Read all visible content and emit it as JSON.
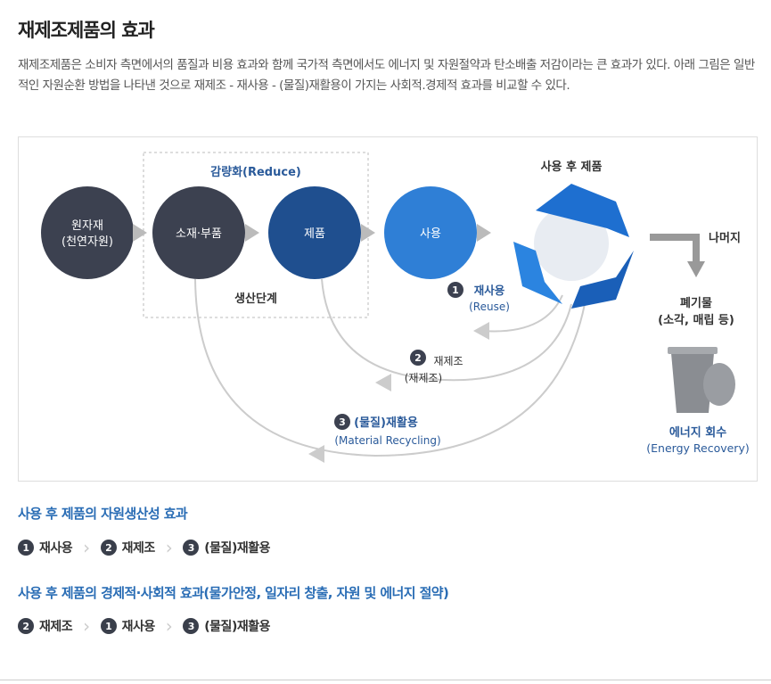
{
  "title": "재제조제품의 효과",
  "description": "재제조제품은 소비자 측면에서의 품질과 비용 효과와 함께 국가적 측면에서도 에너지 및 자원절약과 탄소배출 저감이라는 큰 효과가 있다. 아래 그림은 일반적인 자원순환 방법을 나타낸 것으로 재제조 - 재사용 - (물질)재활용이 가지는 사회적.경제적 효과를 비교할 수 있다.",
  "diagram": {
    "reduce_label": "감량화(Reduce)",
    "production_label": "생산단계",
    "raw_line1": "원자재",
    "raw_line2": "(천연자원)",
    "parts": "소재·부품",
    "product": "제품",
    "use": "사용",
    "after_use": "사용 후 제품",
    "rest": "나머지",
    "waste_line1": "폐기물",
    "waste_line2": "(소각, 매립 등)",
    "energy_line1": "에너지 회수",
    "energy_line2": "(Energy Recovery)",
    "reuse_num": "1",
    "reuse_line1": "재사용",
    "reuse_line2": "(Reuse)",
    "reman_num": "2",
    "reman_line1": "재제조",
    "reman_line2": "(재제조)",
    "recycle_num": "3",
    "recycle_line1": "(물질)재활용",
    "recycle_line2": "(Material Recycling)",
    "colors": {
      "dark": "#3c4150",
      "navy": "#1f4f8f",
      "blue": "#2f7fd6",
      "label": "#2a5a9a"
    }
  },
  "section1": {
    "heading": "사용 후 제품의 자원생산성 효과",
    "steps": [
      {
        "num": "1",
        "label": "재사용"
      },
      {
        "num": "2",
        "label": "재제조"
      },
      {
        "num": "3",
        "label": "(물질)재활용"
      }
    ]
  },
  "section2": {
    "heading": "사용 후 제품의 경제적·사회적 효과(물가안정, 일자리 창출, 자원 및 에너지 절약)",
    "steps": [
      {
        "num": "2",
        "label": "재제조"
      },
      {
        "num": "1",
        "label": "재사용"
      },
      {
        "num": "3",
        "label": "(물질)재활용"
      }
    ]
  }
}
